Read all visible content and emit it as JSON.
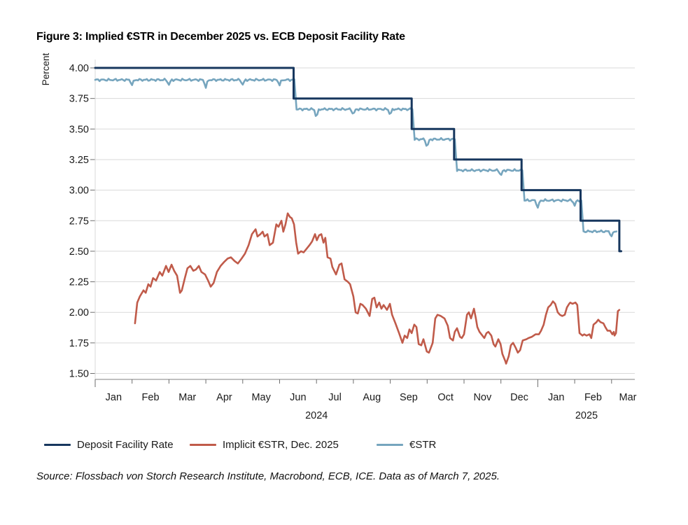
{
  "title": "Figure 3: Implied €STR in December 2025 vs. ECB Deposit Facility Rate",
  "source": "Source: Flossbach von Storch Research Institute, Macrobond, ECB, ICE. Data as of March 7, 2025.",
  "colors": {
    "dfr": "#17375E",
    "implicit": "#C05B4A",
    "estr": "#76A5BE",
    "grid": "#D9D9D9",
    "axis": "#9A9A9A",
    "tick": "#6E6E6E",
    "text": "#1A1A1A"
  },
  "legend": {
    "items": [
      {
        "label": "Deposit Facility Rate",
        "series": "dfr"
      },
      {
        "label": "Implicit €STR, Dec. 2025",
        "series": "implicit"
      },
      {
        "label": "€STR",
        "series": "estr"
      }
    ]
  },
  "chart_data": {
    "type": "line",
    "title": "Implied €STR in December 2025 vs. ECB Deposit Facility Rate",
    "ylabel": "Percent",
    "xlabel": "",
    "ylim": [
      1.5,
      4.0
    ],
    "ytick_step": 0.25,
    "grid": true,
    "legend_position": "bottom",
    "x_unit": "months_since_2024_01_01",
    "x_month_labels": [
      "Jan",
      "Feb",
      "Mar",
      "Apr",
      "May",
      "Jun",
      "Jul",
      "Aug",
      "Sep",
      "Oct",
      "Nov",
      "Dec",
      "Jan",
      "Feb",
      "Mar"
    ],
    "year_labels": [
      {
        "text": "2024",
        "m": 6.0
      },
      {
        "text": "2025",
        "m": 13.32
      }
    ],
    "series": [
      {
        "name": "Deposit Facility Rate",
        "color_key": "dfr",
        "style": "step",
        "width": 3,
        "points": [
          [
            0,
            4.0
          ],
          [
            5.38,
            4.0
          ],
          [
            5.38,
            3.75
          ],
          [
            8.58,
            3.75
          ],
          [
            8.58,
            3.5
          ],
          [
            9.73,
            3.5
          ],
          [
            9.73,
            3.25
          ],
          [
            11.56,
            3.25
          ],
          [
            11.56,
            3.0
          ],
          [
            13.16,
            3.0
          ],
          [
            13.16,
            2.75
          ],
          [
            14.21,
            2.75
          ],
          [
            14.21,
            2.5
          ],
          [
            14.26,
            2.5
          ]
        ]
      },
      {
        "name": "€STR",
        "color_key": "estr",
        "style": "wiggle-step",
        "width": 2.6,
        "dip_depth": 0.042,
        "wiggle": 0.006,
        "segments": [
          [
            0.0,
            5.4,
            3.902
          ],
          [
            5.46,
            8.6,
            3.662
          ],
          [
            8.66,
            9.75,
            3.416
          ],
          [
            9.81,
            11.58,
            3.162
          ],
          [
            11.64,
            13.18,
            2.916
          ],
          [
            13.24,
            14.13,
            2.662
          ]
        ]
      },
      {
        "name": "Implicit €STR, Dec. 2025",
        "color_key": "implicit",
        "style": "line",
        "width": 2.6,
        "points": [
          [
            1.08,
            1.91
          ],
          [
            1.14,
            2.08
          ],
          [
            1.21,
            2.13
          ],
          [
            1.31,
            2.18
          ],
          [
            1.37,
            2.16
          ],
          [
            1.44,
            2.23
          ],
          [
            1.5,
            2.21
          ],
          [
            1.57,
            2.28
          ],
          [
            1.65,
            2.26
          ],
          [
            1.75,
            2.33
          ],
          [
            1.82,
            2.3
          ],
          [
            1.92,
            2.38
          ],
          [
            1.99,
            2.33
          ],
          [
            2.07,
            2.39
          ],
          [
            2.14,
            2.34
          ],
          [
            2.22,
            2.3
          ],
          [
            2.3,
            2.16
          ],
          [
            2.35,
            2.18
          ],
          [
            2.43,
            2.28
          ],
          [
            2.5,
            2.36
          ],
          [
            2.58,
            2.38
          ],
          [
            2.66,
            2.34
          ],
          [
            2.73,
            2.35
          ],
          [
            2.81,
            2.38
          ],
          [
            2.88,
            2.33
          ],
          [
            2.98,
            2.31
          ],
          [
            3.06,
            2.26
          ],
          [
            3.13,
            2.21
          ],
          [
            3.21,
            2.24
          ],
          [
            3.3,
            2.33
          ],
          [
            3.4,
            2.38
          ],
          [
            3.49,
            2.41
          ],
          [
            3.59,
            2.44
          ],
          [
            3.68,
            2.45
          ],
          [
            3.78,
            2.42
          ],
          [
            3.87,
            2.4
          ],
          [
            3.97,
            2.44
          ],
          [
            4.06,
            2.48
          ],
          [
            4.16,
            2.55
          ],
          [
            4.25,
            2.64
          ],
          [
            4.35,
            2.68
          ],
          [
            4.4,
            2.62
          ],
          [
            4.48,
            2.64
          ],
          [
            4.54,
            2.66
          ],
          [
            4.59,
            2.62
          ],
          [
            4.67,
            2.64
          ],
          [
            4.73,
            2.55
          ],
          [
            4.82,
            2.57
          ],
          [
            4.91,
            2.72
          ],
          [
            4.97,
            2.7
          ],
          [
            5.05,
            2.75
          ],
          [
            5.1,
            2.66
          ],
          [
            5.16,
            2.72
          ],
          [
            5.22,
            2.81
          ],
          [
            5.28,
            2.78
          ],
          [
            5.33,
            2.77
          ],
          [
            5.39,
            2.72
          ],
          [
            5.45,
            2.57
          ],
          [
            5.5,
            2.48
          ],
          [
            5.58,
            2.5
          ],
          [
            5.65,
            2.49
          ],
          [
            5.73,
            2.52
          ],
          [
            5.81,
            2.55
          ],
          [
            5.88,
            2.58
          ],
          [
            5.96,
            2.64
          ],
          [
            6.01,
            2.59
          ],
          [
            6.07,
            2.63
          ],
          [
            6.13,
            2.64
          ],
          [
            6.19,
            2.57
          ],
          [
            6.24,
            2.61
          ],
          [
            6.3,
            2.45
          ],
          [
            6.38,
            2.44
          ],
          [
            6.43,
            2.37
          ],
          [
            6.53,
            2.31
          ],
          [
            6.62,
            2.39
          ],
          [
            6.68,
            2.4
          ],
          [
            6.76,
            2.27
          ],
          [
            6.85,
            2.25
          ],
          [
            6.91,
            2.23
          ],
          [
            7.0,
            2.13
          ],
          [
            7.06,
            2.0
          ],
          [
            7.12,
            1.99
          ],
          [
            7.19,
            2.07
          ],
          [
            7.25,
            2.06
          ],
          [
            7.34,
            2.03
          ],
          [
            7.44,
            1.97
          ],
          [
            7.51,
            2.11
          ],
          [
            7.57,
            2.12
          ],
          [
            7.63,
            2.04
          ],
          [
            7.7,
            2.08
          ],
          [
            7.76,
            2.03
          ],
          [
            7.82,
            2.06
          ],
          [
            7.91,
            2.02
          ],
          [
            7.99,
            2.07
          ],
          [
            8.05,
            1.98
          ],
          [
            8.14,
            1.91
          ],
          [
            8.24,
            1.83
          ],
          [
            8.33,
            1.75
          ],
          [
            8.39,
            1.81
          ],
          [
            8.46,
            1.79
          ],
          [
            8.52,
            1.86
          ],
          [
            8.58,
            1.83
          ],
          [
            8.65,
            1.9
          ],
          [
            8.71,
            1.88
          ],
          [
            8.77,
            1.74
          ],
          [
            8.84,
            1.73
          ],
          [
            8.9,
            1.78
          ],
          [
            8.99,
            1.68
          ],
          [
            9.05,
            1.67
          ],
          [
            9.15,
            1.75
          ],
          [
            9.22,
            1.95
          ],
          [
            9.28,
            1.98
          ],
          [
            9.37,
            1.97
          ],
          [
            9.47,
            1.95
          ],
          [
            9.56,
            1.89
          ],
          [
            9.62,
            1.79
          ],
          [
            9.7,
            1.77
          ],
          [
            9.75,
            1.84
          ],
          [
            9.81,
            1.87
          ],
          [
            9.89,
            1.8
          ],
          [
            9.94,
            1.79
          ],
          [
            10.0,
            1.82
          ],
          [
            10.08,
            1.98
          ],
          [
            10.13,
            2.0
          ],
          [
            10.19,
            1.95
          ],
          [
            10.27,
            2.03
          ],
          [
            10.32,
            1.95
          ],
          [
            10.36,
            1.88
          ],
          [
            10.42,
            1.84
          ],
          [
            10.47,
            1.82
          ],
          [
            10.55,
            1.79
          ],
          [
            10.61,
            1.83
          ],
          [
            10.66,
            1.84
          ],
          [
            10.74,
            1.81
          ],
          [
            10.8,
            1.74
          ],
          [
            10.85,
            1.72
          ],
          [
            10.93,
            1.78
          ],
          [
            10.99,
            1.74
          ],
          [
            11.04,
            1.66
          ],
          [
            11.12,
            1.6
          ],
          [
            11.14,
            1.58
          ],
          [
            11.21,
            1.64
          ],
          [
            11.27,
            1.73
          ],
          [
            11.33,
            1.75
          ],
          [
            11.4,
            1.71
          ],
          [
            11.46,
            1.67
          ],
          [
            11.52,
            1.69
          ],
          [
            11.59,
            1.77
          ],
          [
            11.69,
            1.78
          ],
          [
            11.75,
            1.79
          ],
          [
            11.84,
            1.8
          ],
          [
            11.94,
            1.82
          ],
          [
            12.03,
            1.82
          ],
          [
            12.09,
            1.85
          ],
          [
            12.16,
            1.9
          ],
          [
            12.22,
            1.98
          ],
          [
            12.28,
            2.04
          ],
          [
            12.35,
            2.06
          ],
          [
            12.41,
            2.09
          ],
          [
            12.47,
            2.07
          ],
          [
            12.54,
            2.0
          ],
          [
            12.6,
            1.98
          ],
          [
            12.66,
            1.97
          ],
          [
            12.73,
            1.98
          ],
          [
            12.79,
            2.04
          ],
          [
            12.85,
            2.07
          ],
          [
            12.88,
            2.08
          ],
          [
            12.94,
            2.07
          ],
          [
            13.02,
            2.08
          ],
          [
            13.07,
            2.06
          ],
          [
            13.13,
            1.83
          ],
          [
            13.21,
            1.81
          ],
          [
            13.26,
            1.82
          ],
          [
            13.32,
            1.81
          ],
          [
            13.4,
            1.82
          ],
          [
            13.45,
            1.79
          ],
          [
            13.51,
            1.9
          ],
          [
            13.59,
            1.92
          ],
          [
            13.64,
            1.94
          ],
          [
            13.7,
            1.92
          ],
          [
            13.78,
            1.91
          ],
          [
            13.83,
            1.88
          ],
          [
            13.89,
            1.85
          ],
          [
            13.96,
            1.85
          ],
          [
            14.02,
            1.82
          ],
          [
            14.06,
            1.84
          ],
          [
            14.08,
            1.81
          ],
          [
            14.12,
            1.83
          ],
          [
            14.17,
            2.01
          ],
          [
            14.21,
            2.02
          ]
        ]
      }
    ]
  }
}
